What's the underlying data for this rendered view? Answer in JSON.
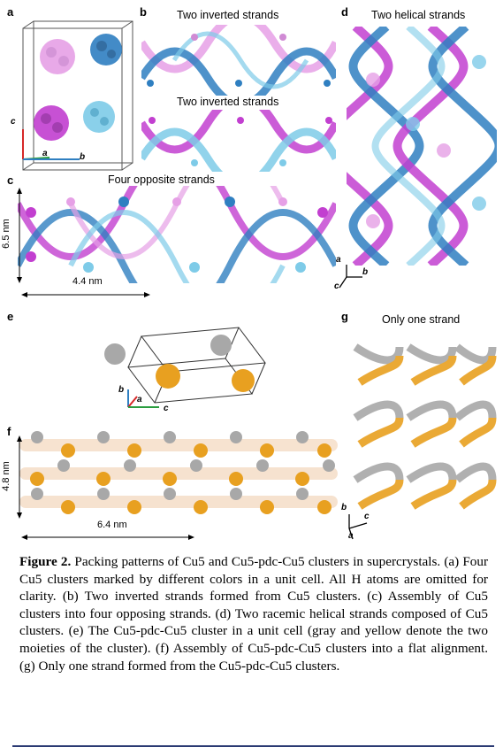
{
  "panels": {
    "a": {
      "label": "a",
      "axes": {
        "c": "c",
        "a": "a",
        "b": "b"
      }
    },
    "b": {
      "label": "b",
      "title_top": "Two inverted strands",
      "title_bottom": "Two inverted strands"
    },
    "c": {
      "label": "c",
      "title": "Four opposite strands",
      "height_dim": "6.5 nm",
      "width_dim": "4.4 nm"
    },
    "d": {
      "label": "d",
      "title": "Two helical strands",
      "axes": {
        "a": "a",
        "b": "b",
        "c": "c"
      }
    },
    "e": {
      "label": "e",
      "axes": {
        "b": "b",
        "a": "a",
        "c": "c"
      }
    },
    "f": {
      "label": "f",
      "height_dim": "4.8 nm",
      "width_dim": "6.4 nm"
    },
    "g": {
      "label": "g",
      "title": "Only one strand",
      "axes": {
        "b": "b",
        "c": "c",
        "a": "a"
      }
    }
  },
  "caption": {
    "figure_label": "Figure 2.",
    "text": "Packing patterns of Cu5 and Cu5-pdc-Cu5 clusters in supercrystals. (a) Four Cu5 clusters marked by different colors in a unit cell. All H atoms are omitted for clarity. (b) Two inverted strands formed from Cu5 clusters. (c) Assembly of Cu5 clusters into four opposing strands. (d) Two racemic helical strands composed of Cu5 clusters. (e) The Cu5-pdc-Cu5 cluster in a unit cell (gray and yellow denote the two moieties of the cluster). (f) Assembly of Cu5-pdc-Cu5 clusters into a flat alignment. (g) Only one strand formed from the Cu5-pdc-Cu5 clusters."
  },
  "colors": {
    "magenta": "#c23fd0",
    "pink": "#e6a0e6",
    "blue": "#2f7fc1",
    "cyan": "#7ecbe8",
    "gray": "#a8a8a8",
    "gold": "#e8a020",
    "rule": "#2b3a73"
  }
}
